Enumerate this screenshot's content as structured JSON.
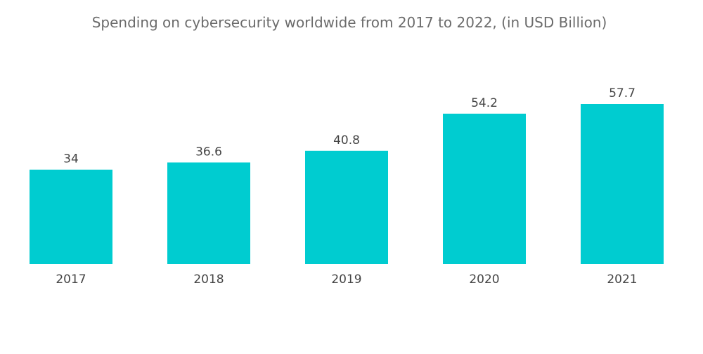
{
  "chart_data": {
    "type": "bar",
    "title": "Spending on cybersecurity worldwide from 2017 to 2022, (in USD Billion)",
    "categories": [
      "2017",
      "2018",
      "2019",
      "2020",
      "2021"
    ],
    "values": [
      34,
      36.6,
      40.8,
      54.2,
      57.7
    ],
    "value_labels": [
      "34",
      "36.6",
      "40.8",
      "54.2",
      "57.7"
    ],
    "xlabel": "",
    "ylabel": "",
    "ylim": [
      0,
      57.7
    ],
    "grid": false,
    "legend": "none",
    "bar_color": "#00ccd0"
  }
}
